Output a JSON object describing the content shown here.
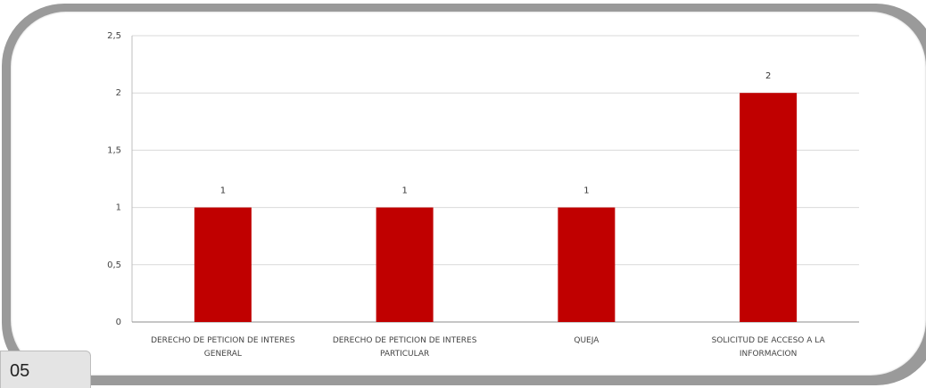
{
  "page": {
    "number": "05"
  },
  "chart_data": {
    "type": "bar",
    "categories": [
      [
        "DERECHO DE PETICION DE INTERES",
        "GENERAL"
      ],
      [
        "DERECHO DE PETICION DE INTERES",
        "PARTICULAR"
      ],
      [
        "QUEJA"
      ],
      [
        "SOLICITUD DE ACCESO A LA",
        "INFORMACION"
      ]
    ],
    "values": [
      1,
      1,
      1,
      2
    ],
    "data_labels": [
      "1",
      "1",
      "1",
      "2"
    ],
    "yticks": [
      "0",
      "0,5",
      "1",
      "1,5",
      "2",
      "2,5"
    ],
    "ytick_values": [
      0,
      0.5,
      1,
      1.5,
      2,
      2.5
    ],
    "ylim": [
      0,
      2.5
    ],
    "grid": true,
    "bar_color": "#c00000",
    "grid_color": "#d9d9d9",
    "frame_color": "#9a9a9a"
  }
}
